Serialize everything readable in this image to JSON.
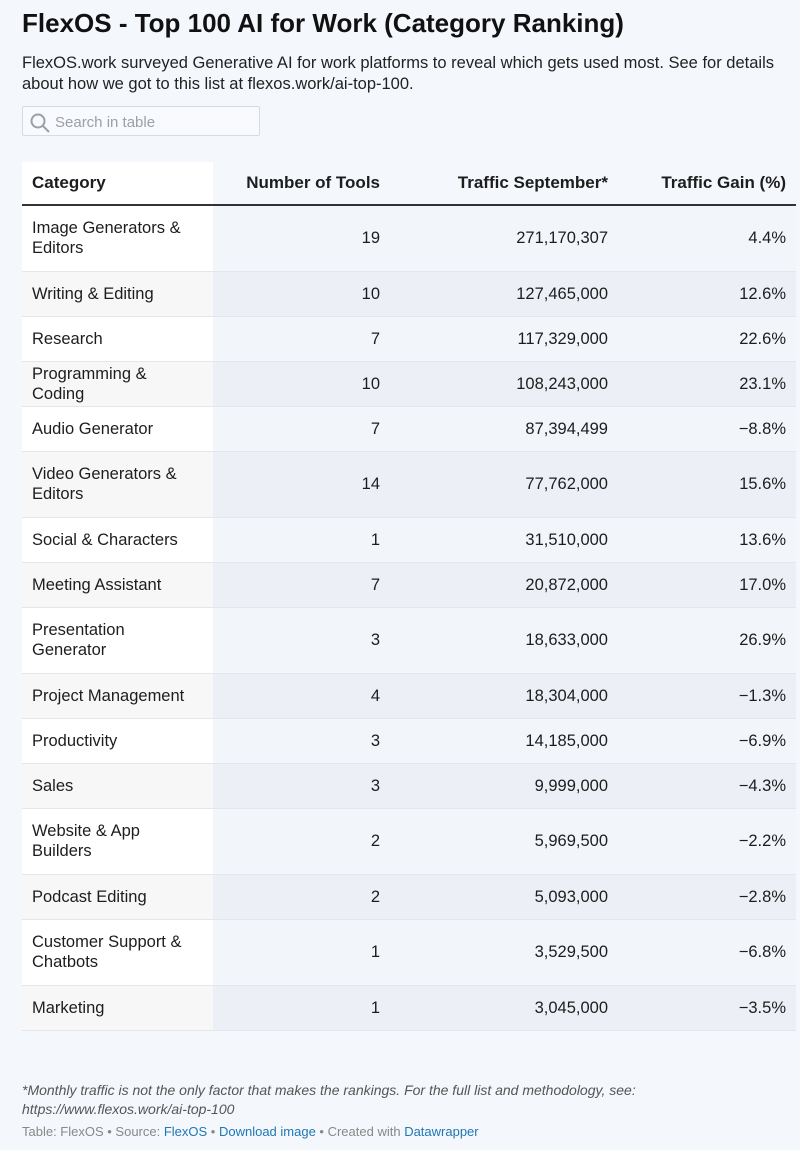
{
  "header": {
    "title": "FlexOS - Top 100 AI for Work (Category Ranking)",
    "description": "FlexOS.work surveyed Generative AI for work platforms to reveal which gets used most. See for details about how we got to this list at flexos.work/ai-top-100."
  },
  "search": {
    "placeholder": "Search in table"
  },
  "table": {
    "columns": [
      "Category",
      "Number of Tools",
      "Traffic September*",
      "Traffic Gain (%)"
    ],
    "rows": [
      [
        "Image Generators & Editors",
        "19",
        "271,170,307",
        "4.4%"
      ],
      [
        "Writing & Editing",
        "10",
        "127,465,000",
        "12.6%"
      ],
      [
        "Research",
        "7",
        "117,329,000",
        "22.6%"
      ],
      [
        "Programming & Coding",
        "10",
        "108,243,000",
        "23.1%"
      ],
      [
        "Audio Generator",
        "7",
        "87,394,499",
        "−8.8%"
      ],
      [
        "Video Generators & Editors",
        "14",
        "77,762,000",
        "15.6%"
      ],
      [
        "Social & Characters",
        "1",
        "31,510,000",
        "13.6%"
      ],
      [
        "Meeting Assistant",
        "7",
        "20,872,000",
        "17.0%"
      ],
      [
        "Presentation Generator",
        "3",
        "18,633,000",
        "26.9%"
      ],
      [
        "Project Management",
        "4",
        "18,304,000",
        "−1.3%"
      ],
      [
        "Productivity",
        "3",
        "14,185,000",
        "−6.9%"
      ],
      [
        "Sales",
        "3",
        "9,999,000",
        "−4.3%"
      ],
      [
        "Website & App Builders",
        "2",
        "5,969,500",
        "−2.2%"
      ],
      [
        "Podcast Editing",
        "2",
        "5,093,000",
        "−2.8%"
      ],
      [
        "Customer Support & Chatbots",
        "1",
        "3,529,500",
        "−6.8%"
      ],
      [
        "Marketing",
        "1",
        "3,045,000",
        "−3.5%"
      ]
    ]
  },
  "footer": {
    "note": "*Monthly traffic is not the only factor that makes the rankings. For the full list and methodology, see: https://www.flexos.work/ai-top-100",
    "byline": [
      "Table: FlexOS • Source: ",
      "FlexOS",
      " • ",
      "Download image",
      " • Created with ",
      "Datawrapper"
    ]
  }
}
